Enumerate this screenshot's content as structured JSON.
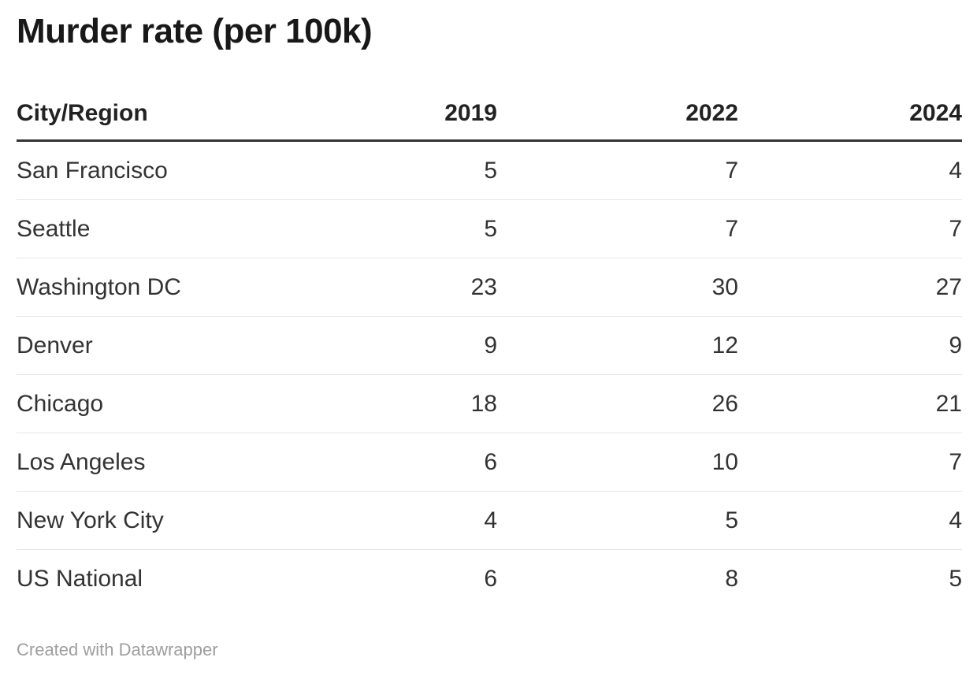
{
  "title": "Murder rate (per 100k)",
  "table": {
    "columns": [
      "City/Region",
      "2019",
      "2022",
      "2024"
    ],
    "rows": [
      [
        "San Francisco",
        5,
        7,
        4
      ],
      [
        "Seattle",
        5,
        7,
        7
      ],
      [
        "Washington DC",
        23,
        30,
        27
      ],
      [
        "Denver",
        9,
        12,
        9
      ],
      [
        "Chicago",
        18,
        26,
        21
      ],
      [
        "Los Angeles",
        6,
        10,
        7
      ],
      [
        "New York City",
        4,
        5,
        4
      ],
      [
        "US National",
        6,
        8,
        5
      ]
    ]
  },
  "footer": {
    "credit": "Created with Datawrapper"
  },
  "colors": {
    "title_text": "#181818",
    "body_text": "#333333",
    "header_rule": "#333333",
    "row_separator": "#e6e6e6",
    "attribution_text": "#9e9e9e",
    "background": "#ffffff"
  },
  "chart_data": {
    "type": "table",
    "title": "Murder rate (per 100k)",
    "categories": [
      "San Francisco",
      "Seattle",
      "Washington DC",
      "Denver",
      "Chicago",
      "Los Angeles",
      "New York City",
      "US National"
    ],
    "series": [
      {
        "name": "2019",
        "values": [
          5,
          5,
          23,
          9,
          18,
          6,
          4,
          6
        ]
      },
      {
        "name": "2022",
        "values": [
          7,
          7,
          30,
          12,
          26,
          10,
          5,
          8
        ]
      },
      {
        "name": "2024",
        "values": [
          4,
          7,
          27,
          9,
          21,
          7,
          4,
          5
        ]
      }
    ],
    "layout_hints": {
      "first_column_align": "left",
      "value_columns_align": "right",
      "header_bold": true,
      "grid": "horizontal-only"
    }
  }
}
